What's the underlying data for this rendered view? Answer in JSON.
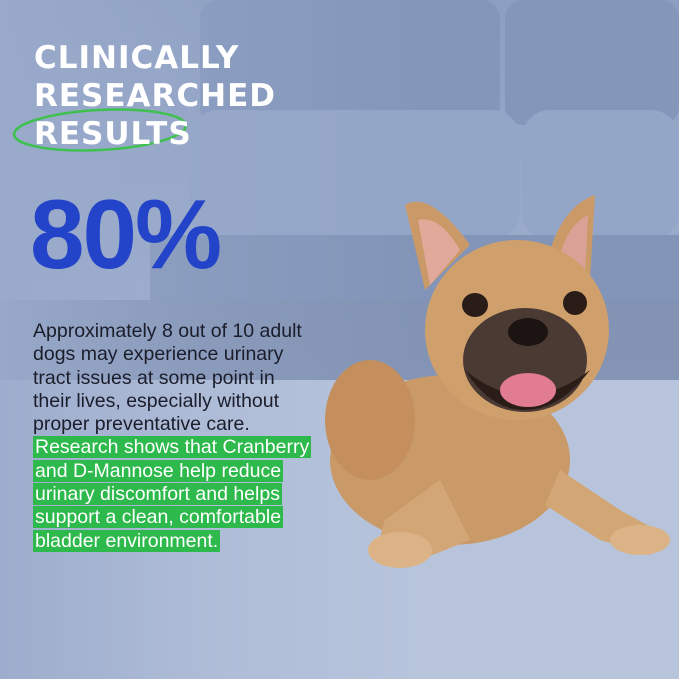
{
  "headline": {
    "lines": [
      "CLINICALLY",
      "RESEARCHED",
      "RESULTS"
    ]
  },
  "stat": "80%",
  "body": {
    "lines": [
      "Approximately 8 out of 10 adult",
      "dogs may experience urinary",
      "tract issues at some point in",
      "their lives, especially without",
      "proper preventative care."
    ]
  },
  "highlight": {
    "lines": [
      "Research shows that Cranberry",
      "and D-Mannose help reduce",
      "urinary discomfort and helps",
      "support a clean, comfortable",
      "bladder environment."
    ]
  }
}
